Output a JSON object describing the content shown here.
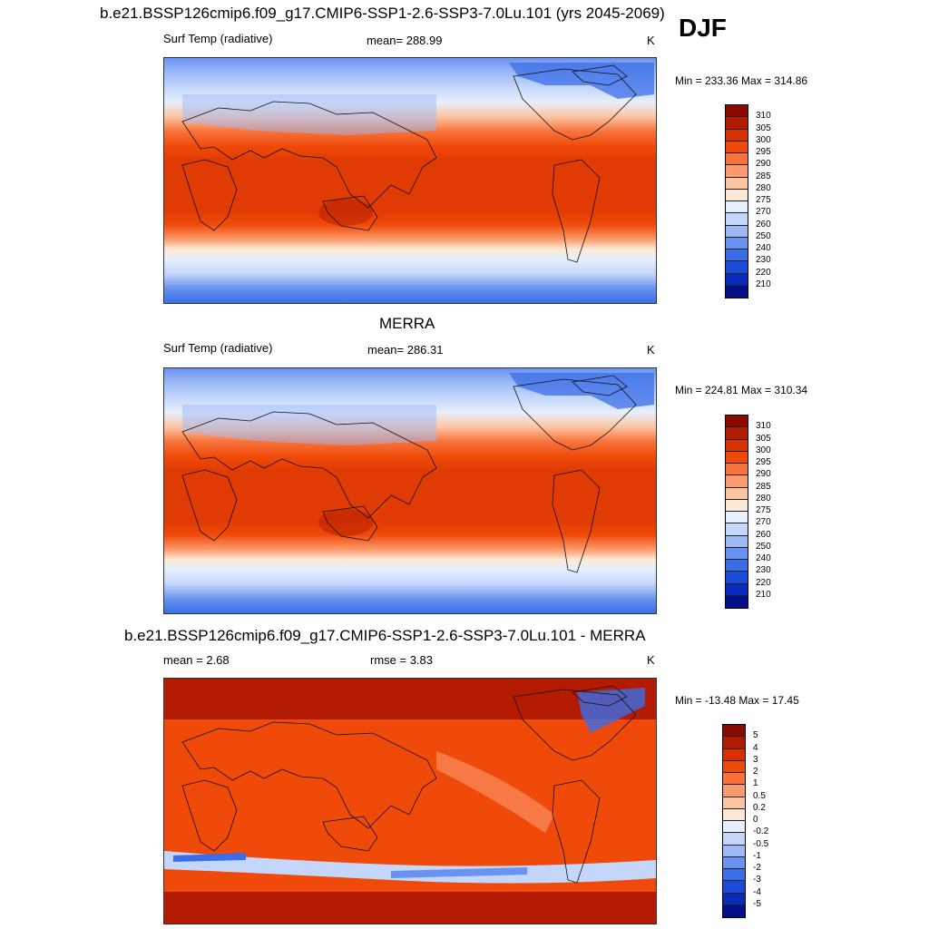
{
  "season": "DJF",
  "panels": [
    {
      "title": "b.e21.BSSP126cmip6.f09_g17.CMIP6-SSP1-2.6-SSP3-7.0Lu.101 (yrs 2045-2069)",
      "left_label": "Surf Temp (radiative)",
      "center_label": "mean= 288.99",
      "units": "K",
      "minmax": "Min = 233.36 Max = 314.86",
      "type": "field",
      "colorbar": {
        "labels": [
          "310",
          "305",
          "300",
          "295",
          "290",
          "285",
          "280",
          "275",
          "270",
          "260",
          "250",
          "240",
          "230",
          "220",
          "210"
        ],
        "colors": [
          "#8b0a00",
          "#b31b00",
          "#d93000",
          "#f04a0a",
          "#f8723a",
          "#fb9a6c",
          "#fdc4a2",
          "#fde8d6",
          "#e6effc",
          "#c4d7fb",
          "#9dbaf7",
          "#6a93f0",
          "#3a6ee8",
          "#1a4ad8",
          "#0a2aba",
          "#04108a"
        ]
      }
    },
    {
      "title": "MERRA",
      "left_label": "Surf Temp (radiative)",
      "center_label": "mean= 286.31",
      "units": "K",
      "minmax": "Min = 224.81 Max = 310.34",
      "type": "field",
      "colorbar": {
        "labels": [
          "310",
          "305",
          "300",
          "295",
          "290",
          "285",
          "280",
          "275",
          "270",
          "260",
          "250",
          "240",
          "230",
          "220",
          "210"
        ],
        "colors": [
          "#8b0a00",
          "#b31b00",
          "#d93000",
          "#f04a0a",
          "#f8723a",
          "#fb9a6c",
          "#fdc4a2",
          "#fde8d6",
          "#e6effc",
          "#c4d7fb",
          "#9dbaf7",
          "#6a93f0",
          "#3a6ee8",
          "#1a4ad8",
          "#0a2aba",
          "#04108a"
        ]
      }
    },
    {
      "title": "b.e21.BSSP126cmip6.f09_g17.CMIP6-SSP1-2.6-SSP3-7.0Lu.101 - MERRA",
      "left_label": "mean =   2.68",
      "center_label": "rmse =   3.83",
      "units": "K",
      "minmax": "Min = -13.48 Max =  17.45",
      "type": "diff",
      "colorbar": {
        "labels": [
          "5",
          "4",
          "3",
          "2",
          "1",
          "0.5",
          "0.2",
          "0",
          "-0.2",
          "-0.5",
          "-1",
          "-2",
          "-3",
          "-4",
          "-5"
        ],
        "colors": [
          "#8b0a00",
          "#b31b00",
          "#d93000",
          "#f04a0a",
          "#f8723a",
          "#fb9a6c",
          "#fdc4a2",
          "#fde8d6",
          "#e6effc",
          "#c4d7fb",
          "#9dbaf7",
          "#6a93f0",
          "#3a6ee8",
          "#1a4ad8",
          "#0a2aba",
          "#04108a"
        ]
      }
    }
  ]
}
